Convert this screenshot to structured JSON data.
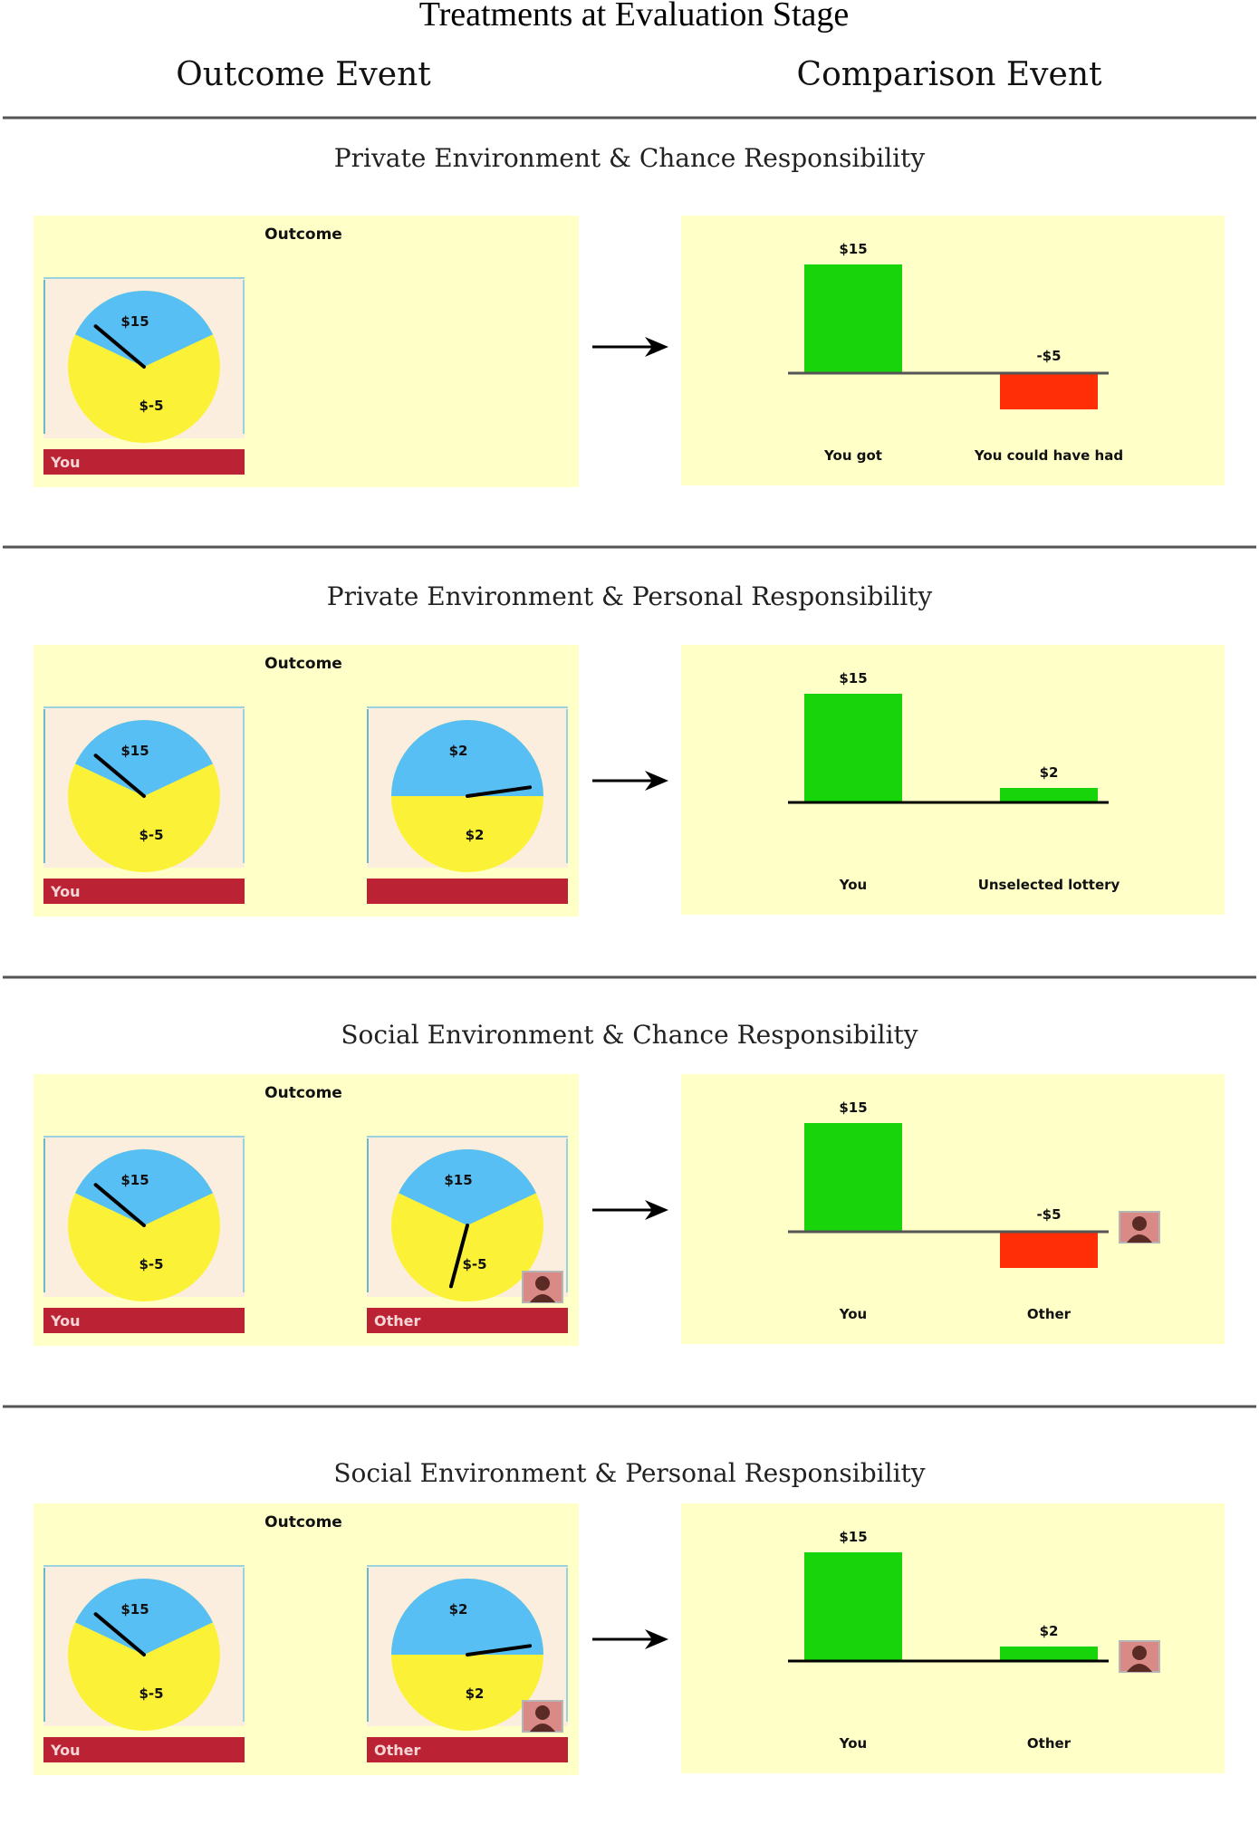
{
  "title": "Treatments at Evaluation Stage",
  "columns": {
    "left": "Outcome Event",
    "right": "Comparison Event"
  },
  "colors": {
    "panel_bg": "#ffffc8",
    "card_bg": "#fbeede",
    "pie_yellow": "#fbf238",
    "pie_blue": "#58bff5",
    "label_bar": "#bb2233",
    "bar_positive": "#18d40a",
    "bar_negative": "#ff2e06"
  },
  "panels": [
    {
      "heading": "Private Environment & Chance Responsibility",
      "outcome_label": "Outcome",
      "you_card": {
        "label": "You",
        "top": "$15",
        "bottom": "$-5",
        "blue_fraction": 0.36,
        "needle_deg": 310
      },
      "other_card": null,
      "comparison": {
        "bars": [
          {
            "value": 15,
            "text": "$15",
            "label": "You got"
          },
          {
            "value": -5,
            "text": "-$5",
            "label": "You could have had"
          }
        ],
        "avatar": false
      }
    },
    {
      "heading": "Private Environment & Personal Responsibility",
      "outcome_label": "Outcome",
      "you_card": {
        "label": "You",
        "top": "$15",
        "bottom": "$-5",
        "blue_fraction": 0.36,
        "needle_deg": 310
      },
      "other_card": {
        "label": "",
        "top": "$2",
        "bottom": "$2",
        "blue_fraction": 0.5,
        "needle_deg": 82,
        "avatar": false
      },
      "comparison": {
        "bars": [
          {
            "value": 15,
            "text": "$15",
            "label": "You"
          },
          {
            "value": 2,
            "text": "$2",
            "label": "Unselected lottery"
          }
        ],
        "avatar": false
      }
    },
    {
      "heading": "Social Environment & Chance Responsibility",
      "outcome_label": "Outcome",
      "you_card": {
        "label": "You",
        "top": "$15",
        "bottom": "$-5",
        "blue_fraction": 0.36,
        "needle_deg": 310
      },
      "other_card": {
        "label": "Other",
        "top": "$15",
        "bottom": "$-5",
        "blue_fraction": 0.36,
        "needle_deg": 195,
        "avatar": true
      },
      "comparison": {
        "bars": [
          {
            "value": 15,
            "text": "$15",
            "label": "You"
          },
          {
            "value": -5,
            "text": "-$5",
            "label": "Other"
          }
        ],
        "avatar": true
      }
    },
    {
      "heading": "Social Environment & Personal Responsibility",
      "outcome_label": "Outcome",
      "you_card": {
        "label": "You",
        "top": "$15",
        "bottom": "$-5",
        "blue_fraction": 0.36,
        "needle_deg": 310
      },
      "other_card": {
        "label": "Other",
        "top": "$2",
        "bottom": "$2",
        "blue_fraction": 0.5,
        "needle_deg": 82,
        "avatar": true
      },
      "comparison": {
        "bars": [
          {
            "value": 15,
            "text": "$15",
            "label": "You"
          },
          {
            "value": 2,
            "text": "$2",
            "label": "Other"
          }
        ],
        "avatar": true
      }
    }
  ]
}
